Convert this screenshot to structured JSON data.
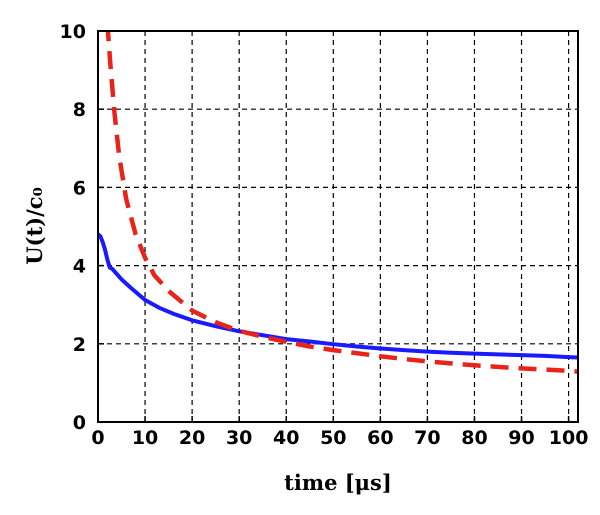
{
  "chart_data": {
    "type": "line",
    "xlabel": "time [μs]",
    "ylabel": "U(t)/c₀",
    "xlim": [
      0,
      102
    ],
    "ylim": [
      0,
      10
    ],
    "xticks": [
      0,
      10,
      20,
      30,
      40,
      50,
      60,
      70,
      80,
      90,
      100
    ],
    "yticks": [
      0,
      2,
      4,
      6,
      8,
      10
    ],
    "xtick_labels": [
      "0",
      "10",
      "20",
      "30",
      "40",
      "50",
      "60",
      "70",
      "80",
      "90",
      "100"
    ],
    "ytick_labels": [
      "0",
      "2",
      "4",
      "6",
      "8",
      "10"
    ],
    "grid": true,
    "series": [
      {
        "color": "#1a1aff",
        "style": "solid",
        "points": [
          [
            0,
            4.8
          ],
          [
            0.5,
            4.75
          ],
          [
            1,
            4.6
          ],
          [
            1.5,
            4.4
          ],
          [
            2,
            4.15
          ],
          [
            2.5,
            3.95
          ],
          [
            3,
            3.92
          ],
          [
            5,
            3.65
          ],
          [
            7,
            3.43
          ],
          [
            10,
            3.12
          ],
          [
            13,
            2.92
          ],
          [
            16,
            2.77
          ],
          [
            20,
            2.6
          ],
          [
            25,
            2.45
          ],
          [
            30,
            2.32
          ],
          [
            35,
            2.22
          ],
          [
            40,
            2.12
          ],
          [
            45,
            2.06
          ],
          [
            50,
            1.99
          ],
          [
            55,
            1.93
          ],
          [
            60,
            1.88
          ],
          [
            65,
            1.84
          ],
          [
            70,
            1.8
          ],
          [
            75,
            1.77
          ],
          [
            80,
            1.75
          ],
          [
            85,
            1.73
          ],
          [
            90,
            1.71
          ],
          [
            95,
            1.69
          ],
          [
            100,
            1.66
          ],
          [
            102,
            1.65
          ]
        ]
      },
      {
        "color": "#e8241a",
        "style": "dashed",
        "points": [
          [
            2,
            10.2
          ],
          [
            2.6,
            9.2
          ],
          [
            3.5,
            7.9
          ],
          [
            4.5,
            6.8
          ],
          [
            6,
            5.7
          ],
          [
            8,
            4.8
          ],
          [
            10,
            4.2
          ],
          [
            12,
            3.75
          ],
          [
            15,
            3.35
          ],
          [
            20,
            2.85
          ],
          [
            25,
            2.55
          ],
          [
            30,
            2.33
          ],
          [
            35,
            2.18
          ],
          [
            40,
            2.05
          ],
          [
            45,
            1.93
          ],
          [
            50,
            1.84
          ],
          [
            55,
            1.76
          ],
          [
            60,
            1.68
          ],
          [
            65,
            1.61
          ],
          [
            70,
            1.55
          ],
          [
            75,
            1.5
          ],
          [
            80,
            1.45
          ],
          [
            85,
            1.41
          ],
          [
            90,
            1.37
          ],
          [
            95,
            1.34
          ],
          [
            100,
            1.31
          ],
          [
            102,
            1.29
          ]
        ]
      }
    ]
  }
}
